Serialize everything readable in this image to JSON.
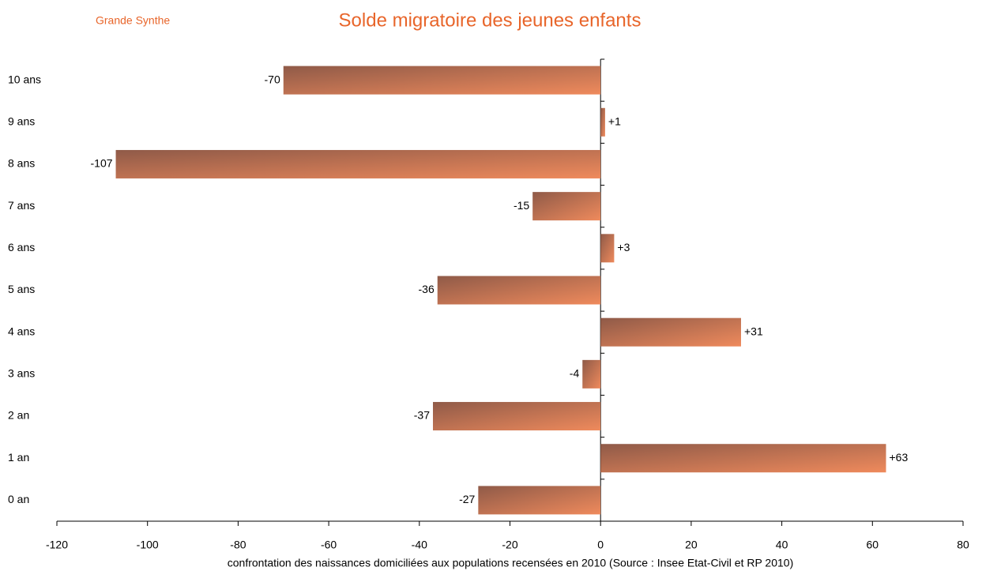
{
  "chart_data": {
    "type": "barh",
    "title": "Solde migratoire des jeunes enfants",
    "subtitle": "Grande Synthe",
    "xlabel": "confrontation des naissances domiciliées aux populations recensées en 2010 (Source : Insee Etat-Civil et RP 2010)",
    "categories": [
      "0 an",
      "1 an",
      "2 an",
      "3 ans",
      "4 ans",
      "5 ans",
      "6 ans",
      "7 ans",
      "8 ans",
      "9 ans",
      "10 ans"
    ],
    "values": [
      -27,
      63,
      -37,
      -4,
      31,
      -36,
      3,
      -15,
      -107,
      1,
      -70
    ],
    "value_labels": [
      "-27",
      "+63",
      "-37",
      "-4",
      "+31",
      "-36",
      "+3",
      "-15",
      "-107",
      "+1",
      "-70"
    ],
    "color": "#ef8a5c",
    "xlim": [
      -120,
      80
    ],
    "xticks": [
      -120,
      -100,
      -80,
      -60,
      -40,
      -20,
      0,
      20,
      40,
      60,
      80
    ],
    "grid": false
  }
}
